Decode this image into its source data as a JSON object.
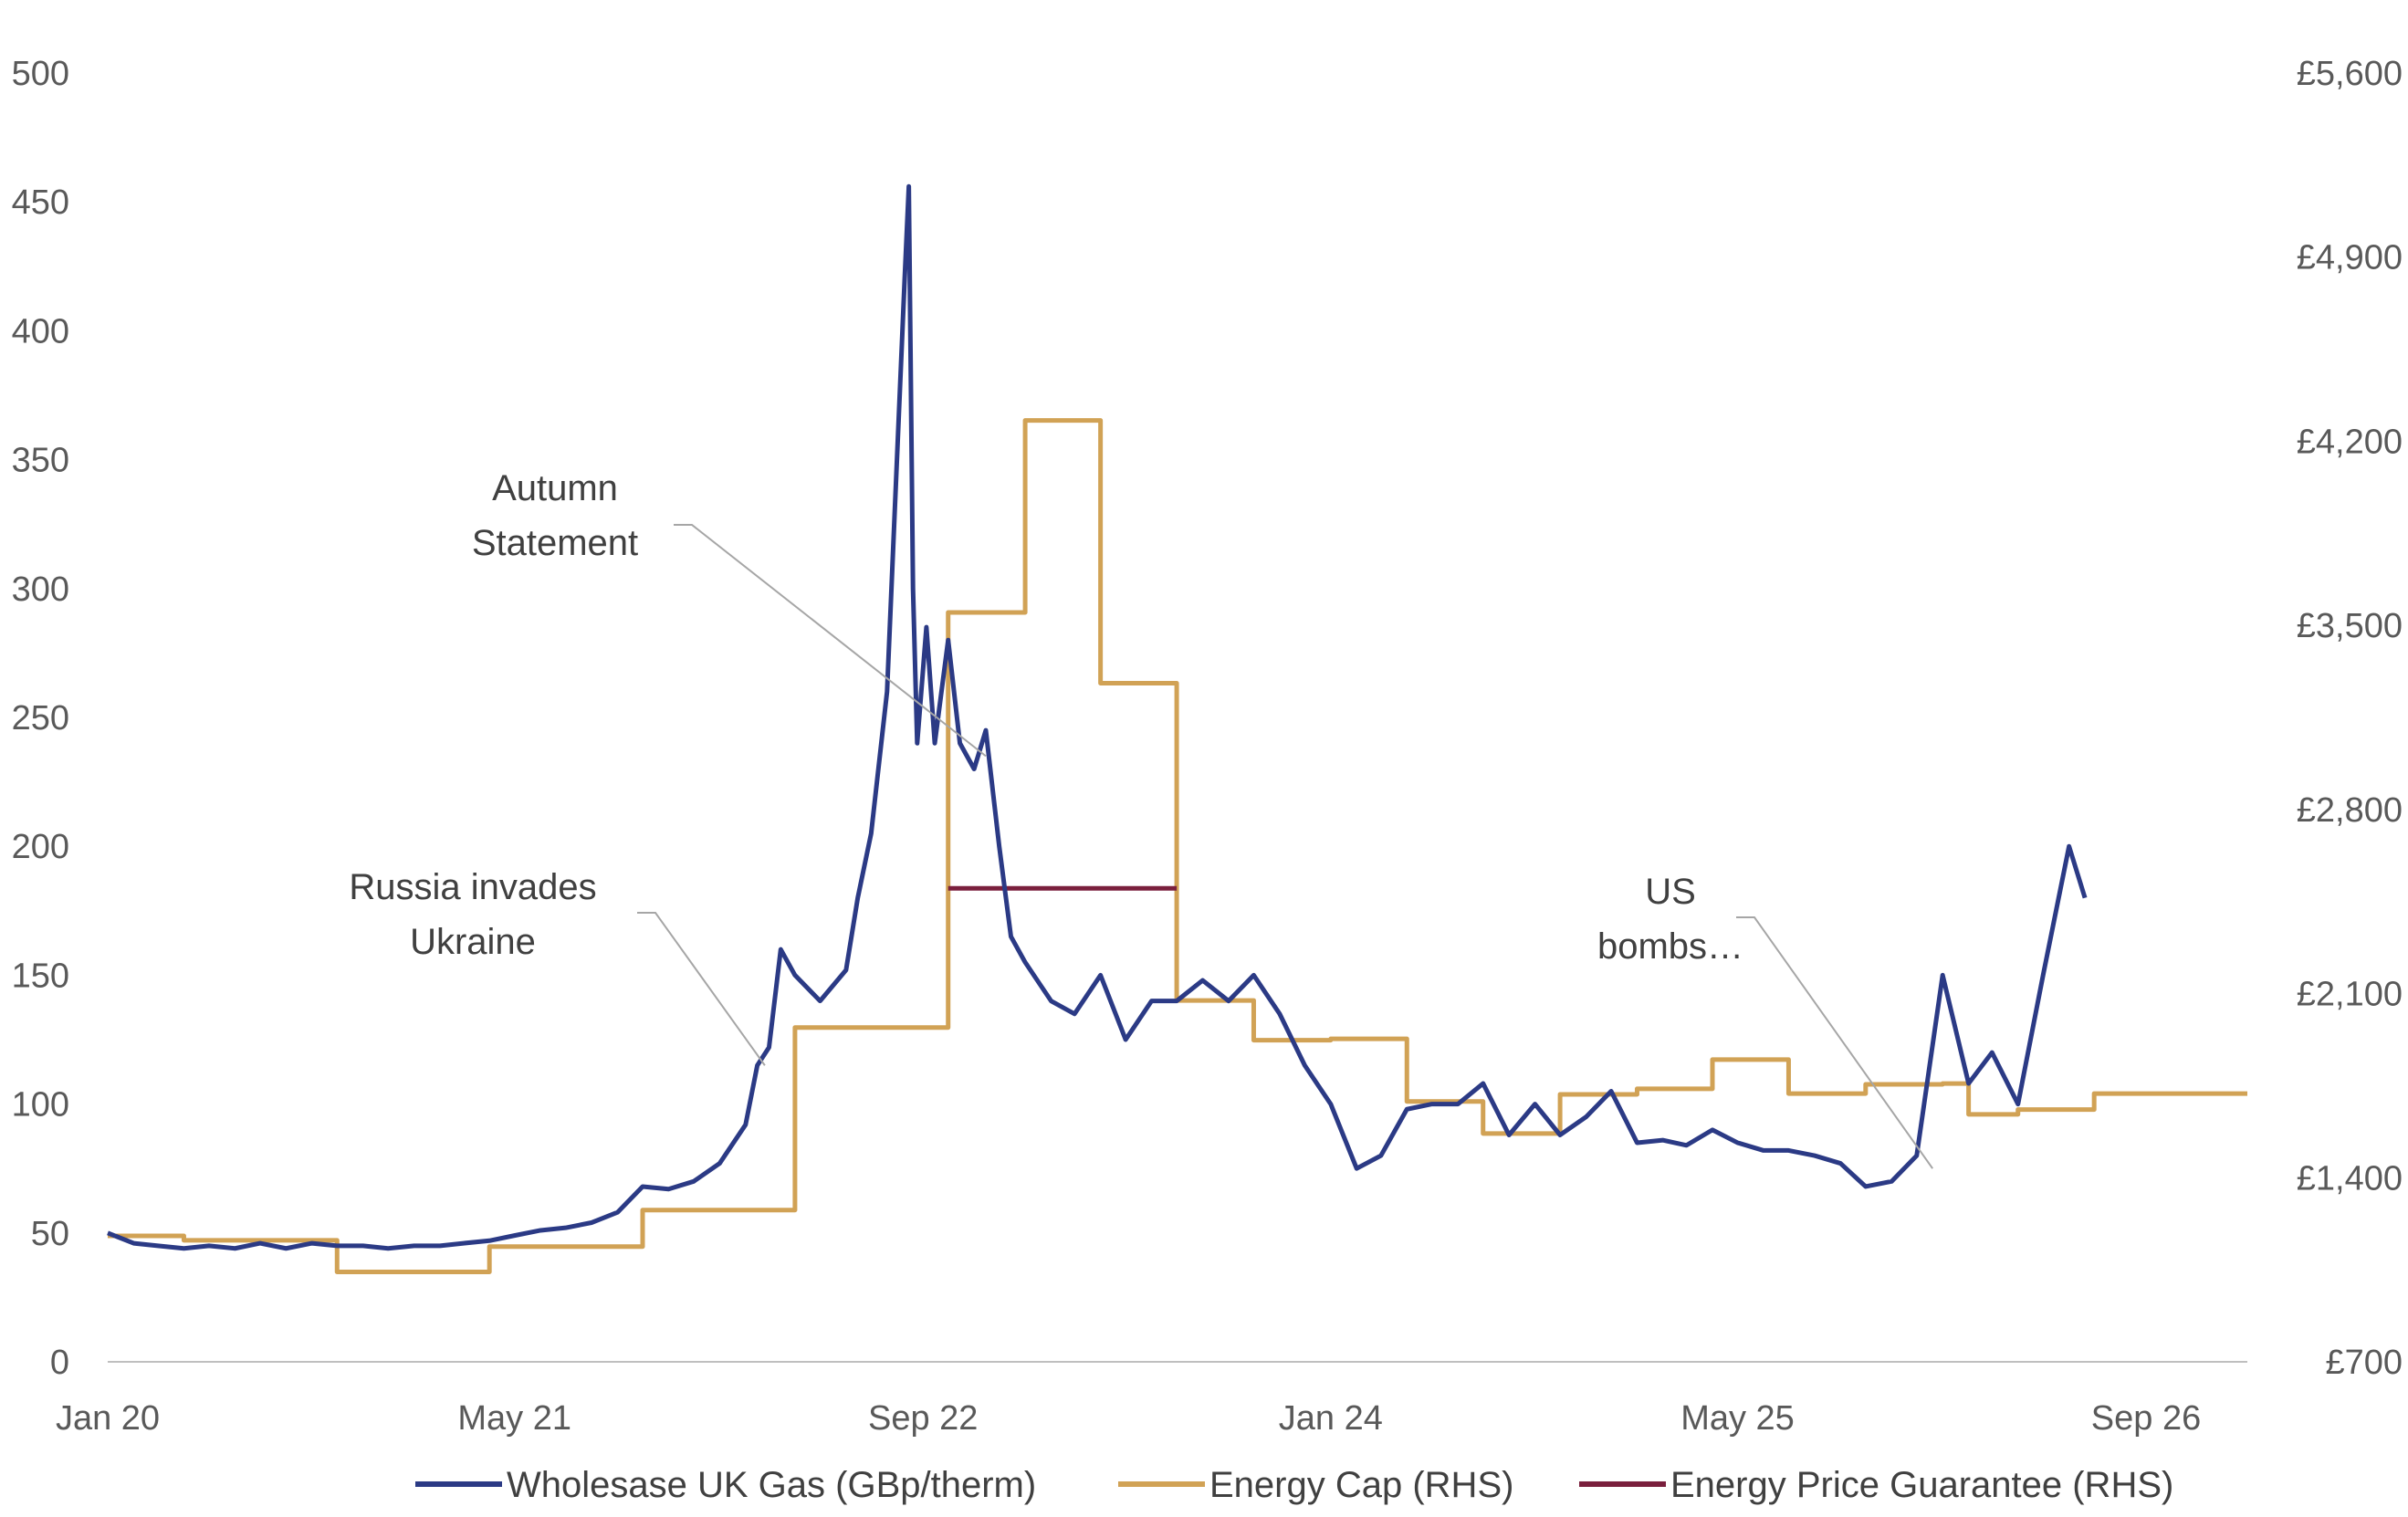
{
  "chart_data": {
    "type": "line",
    "title": "",
    "xlabel": "",
    "ylabel": "",
    "x_ticks": [
      "Jan 20",
      "May 21",
      "Sep 22",
      "Jan 24",
      "May 25",
      "Sep 26"
    ],
    "x_range": [
      "2020-01",
      "2026-12"
    ],
    "y_left": {
      "range": [
        0,
        500
      ],
      "ticks": [
        "0",
        "50",
        "100",
        "150",
        "200",
        "250",
        "300",
        "350",
        "400",
        "450",
        "500"
      ]
    },
    "y_right": {
      "range": [
        700,
        5600
      ],
      "ticks": [
        "£700",
        "£1,400",
        "£2,100",
        "£2,800",
        "£3,500",
        "£4,200",
        "£4,900",
        "£5,600"
      ]
    },
    "grid": false,
    "legend_position": "bottom",
    "series": [
      {
        "name": "Wholesase UK Gas (GBp/therm)",
        "axis": "left",
        "color": "#2b3a85",
        "style": "line",
        "points": [
          [
            "2020-01-01",
            50
          ],
          [
            "2020-02-01",
            46
          ],
          [
            "2020-03-01",
            45
          ],
          [
            "2020-04-01",
            44
          ],
          [
            "2020-05-01",
            45
          ],
          [
            "2020-06-01",
            44
          ],
          [
            "2020-07-01",
            46
          ],
          [
            "2020-08-01",
            44
          ],
          [
            "2020-09-01",
            46
          ],
          [
            "2020-10-01",
            45
          ],
          [
            "2020-11-01",
            45
          ],
          [
            "2020-12-01",
            44
          ],
          [
            "2021-01-01",
            45
          ],
          [
            "2021-02-01",
            45
          ],
          [
            "2021-03-01",
            46
          ],
          [
            "2021-04-01",
            47
          ],
          [
            "2021-05-01",
            49
          ],
          [
            "2021-06-01",
            51
          ],
          [
            "2021-07-01",
            52
          ],
          [
            "2021-08-01",
            54
          ],
          [
            "2021-09-01",
            58
          ],
          [
            "2021-10-01",
            68
          ],
          [
            "2021-11-01",
            67
          ],
          [
            "2021-12-01",
            70
          ],
          [
            "2022-01-01",
            77
          ],
          [
            "2022-02-01",
            92
          ],
          [
            "2022-02-15",
            115
          ],
          [
            "2022-03-01",
            122
          ],
          [
            "2022-03-15",
            160
          ],
          [
            "2022-04-01",
            150
          ],
          [
            "2022-05-01",
            140
          ],
          [
            "2022-06-01",
            152
          ],
          [
            "2022-06-15",
            180
          ],
          [
            "2022-07-01",
            205
          ],
          [
            "2022-07-20",
            260
          ],
          [
            "2022-08-10",
            420
          ],
          [
            "2022-08-15",
            456
          ],
          [
            "2022-08-20",
            300
          ],
          [
            "2022-08-25",
            240
          ],
          [
            "2022-09-05",
            285
          ],
          [
            "2022-09-15",
            240
          ],
          [
            "2022-10-01",
            280
          ],
          [
            "2022-10-15",
            240
          ],
          [
            "2022-11-01",
            230
          ],
          [
            "2022-11-15",
            245
          ],
          [
            "2022-12-01",
            200
          ],
          [
            "2022-12-15",
            165
          ],
          [
            "2023-01-01",
            155
          ],
          [
            "2023-02-01",
            140
          ],
          [
            "2023-03-01",
            135
          ],
          [
            "2023-04-01",
            150
          ],
          [
            "2023-05-01",
            125
          ],
          [
            "2023-06-01",
            140
          ],
          [
            "2023-07-01",
            140
          ],
          [
            "2023-08-01",
            148
          ],
          [
            "2023-09-01",
            140
          ],
          [
            "2023-10-01",
            150
          ],
          [
            "2023-11-01",
            135
          ],
          [
            "2023-12-01",
            115
          ],
          [
            "2024-01-01",
            100
          ],
          [
            "2024-02-01",
            75
          ],
          [
            "2024-03-01",
            80
          ],
          [
            "2024-04-01",
            98
          ],
          [
            "2024-05-01",
            100
          ],
          [
            "2024-06-01",
            100
          ],
          [
            "2024-07-01",
            108
          ],
          [
            "2024-08-01",
            88
          ],
          [
            "2024-09-01",
            100
          ],
          [
            "2024-10-01",
            88
          ],
          [
            "2024-11-01",
            95
          ],
          [
            "2024-12-01",
            105
          ],
          [
            "2025-01-01",
            85
          ],
          [
            "2025-02-01",
            86
          ],
          [
            "2025-03-01",
            84
          ],
          [
            "2025-04-01",
            90
          ],
          [
            "2025-05-01",
            85
          ],
          [
            "2025-06-01",
            82
          ],
          [
            "2025-07-01",
            82
          ],
          [
            "2025-08-01",
            80
          ],
          [
            "2025-09-01",
            77
          ],
          [
            "2025-10-01",
            68
          ],
          [
            "2025-11-01",
            70
          ],
          [
            "2025-12-01",
            80
          ],
          [
            "2026-01-01",
            150
          ],
          [
            "2026-02-01",
            108
          ],
          [
            "2026-03-01",
            120
          ],
          [
            "2026-04-01",
            100
          ],
          [
            "2026-05-01",
            150
          ],
          [
            "2026-06-01",
            200
          ],
          [
            "2026-06-20",
            180
          ]
        ]
      },
      {
        "name": "Energy Cap (RHS)",
        "axis": "right",
        "color": "#d1a255",
        "style": "step",
        "steps": [
          [
            "2020-01-01",
            1179
          ],
          [
            "2020-04-01",
            1162
          ],
          [
            "2020-10-01",
            1042
          ],
          [
            "2021-04-01",
            1138
          ],
          [
            "2021-10-01",
            1277
          ],
          [
            "2022-04-01",
            1971
          ],
          [
            "2022-10-01",
            3549
          ],
          [
            "2023-01-01",
            4279
          ],
          [
            "2023-04-01",
            3280
          ],
          [
            "2023-07-01",
            2074
          ],
          [
            "2023-10-01",
            1923
          ],
          [
            "2024-01-01",
            1928
          ],
          [
            "2024-04-01",
            1690
          ],
          [
            "2024-07-01",
            1568
          ],
          [
            "2024-10-01",
            1717
          ],
          [
            "2025-01-01",
            1738
          ],
          [
            "2025-04-01",
            1849
          ],
          [
            "2025-07-01",
            1720
          ],
          [
            "2025-10-01",
            1755
          ],
          [
            "2026-01-01",
            1758
          ],
          [
            "2026-02-01",
            1641
          ],
          [
            "2026-04-01",
            1659
          ],
          [
            "2026-07-01",
            1720
          ],
          [
            "2026-12-31",
            1720
          ]
        ]
      },
      {
        "name": "Energy Price Guarantee (RHS)",
        "axis": "right",
        "color": "#7a1f3d",
        "style": "line",
        "points": [
          [
            "2022-10-01",
            2500
          ],
          [
            "2023-07-01",
            2500
          ]
        ]
      }
    ],
    "annotations": [
      {
        "lines": [
          "Autumn",
          "Statement"
        ],
        "target": [
          "2022-11-15",
          235
        ]
      },
      {
        "lines": [
          "Russia invades",
          "Ukraine"
        ],
        "target": [
          "2022-02-24",
          115
        ]
      },
      {
        "lines": [
          "US",
          "bombs…"
        ],
        "target": [
          "2025-12-20",
          75
        ]
      }
    ]
  }
}
